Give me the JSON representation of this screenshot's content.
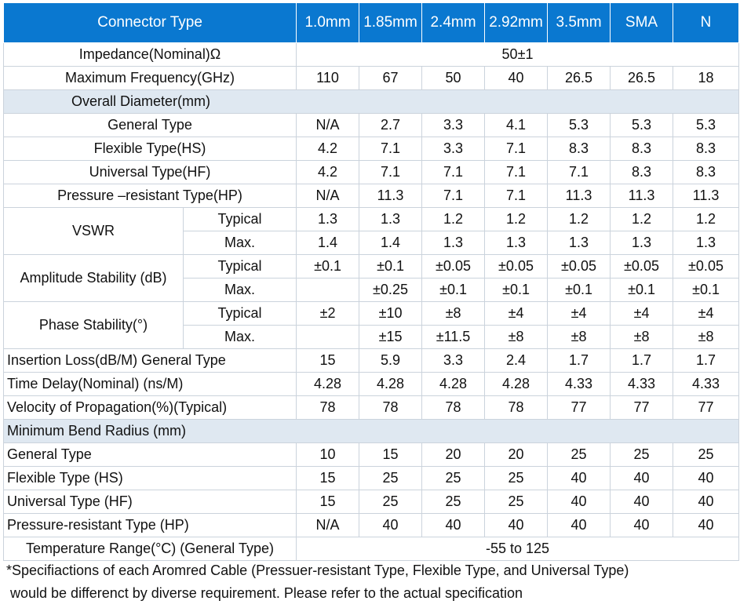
{
  "columns": [
    "1.0mm",
    "1.85mm",
    "2.4mm",
    "2.92mm",
    "3.5mm",
    "SMA",
    "N"
  ],
  "header": {
    "label": "Connector Type"
  },
  "impedance": {
    "label": "Impedance(Nominal)Ω",
    "value": "50±1"
  },
  "max_freq": {
    "label": "Maximum Frequency(GHz)",
    "values": [
      "110",
      "67",
      "50",
      "40",
      "26.5",
      "26.5",
      "18"
    ]
  },
  "overall_diameter": {
    "label": "Overall Diameter(mm)",
    "rows": [
      {
        "label": "General Type",
        "values": [
          "N/A",
          "2.7",
          "3.3",
          "4.1",
          "5.3",
          "5.3",
          "5.3"
        ]
      },
      {
        "label": "Flexible Type(HS)",
        "values": [
          "4.2",
          "7.1",
          "3.3",
          "7.1",
          "8.3",
          "8.3",
          "8.3"
        ]
      },
      {
        "label": "Universal Type(HF)",
        "values": [
          "4.2",
          "7.1",
          "7.1",
          "7.1",
          "7.1",
          "8.3",
          "8.3"
        ]
      },
      {
        "label": "Pressure –resistant Type(HP)",
        "values": [
          "N/A",
          "11.3",
          "7.1",
          "7.1",
          "11.3",
          "11.3",
          "11.3"
        ]
      }
    ]
  },
  "vswr": {
    "label": "VSWR",
    "typical": {
      "label": "Typical",
      "values": [
        "1.3",
        "1.3",
        "1.2",
        "1.2",
        "1.2",
        "1.2",
        "1.2"
      ]
    },
    "max": {
      "label": "Max.",
      "values": [
        "1.4",
        "1.4",
        "1.3",
        "1.3",
        "1.3",
        "1.3",
        "1.3"
      ]
    }
  },
  "amplitude": {
    "label": "Amplitude Stability (dB)",
    "typical": {
      "label": "Typical",
      "values": [
        "±0.1",
        "±0.1",
        "±0.05",
        "±0.05",
        "±0.05",
        "±0.05",
        "±0.05"
      ]
    },
    "max": {
      "label": "Max.",
      "values": [
        "",
        "±0.25",
        "±0.1",
        "±0.1",
        "±0.1",
        "±0.1",
        "±0.1"
      ]
    }
  },
  "phase": {
    "label": "Phase Stability(°)",
    "typical": {
      "label": "Typical",
      "values": [
        "±2",
        "±10",
        "±8",
        "±4",
        "±4",
        "±4",
        "±4"
      ]
    },
    "max": {
      "label": "Max.",
      "values": [
        "",
        "±15",
        "±11.5",
        "±8",
        "±8",
        "±8",
        "±8"
      ]
    }
  },
  "insertion_loss": {
    "label": "Insertion Loss(dB/M) General Type",
    "values": [
      "15",
      "5.9",
      "3.3",
      "2.4",
      "1.7",
      "1.7",
      "1.7"
    ]
  },
  "time_delay": {
    "label": "Time Delay(Nominal) (ns/M)",
    "values": [
      "4.28",
      "4.28",
      "4.28",
      "4.28",
      "4.33",
      "4.33",
      "4.33"
    ]
  },
  "velocity": {
    "label": "Velocity of Propagation(%)(Typical)",
    "values": [
      "78",
      "78",
      "78",
      "78",
      "77",
      "77",
      "77"
    ]
  },
  "bend_radius": {
    "label": "Minimum Bend Radius (mm)",
    "rows": [
      {
        "label": "General Type",
        "values": [
          "10",
          "15",
          "20",
          "20",
          "25",
          "25",
          "25"
        ]
      },
      {
        "label": "Flexible Type (HS)",
        "values": [
          "15",
          "25",
          "25",
          "25",
          "40",
          "40",
          "40"
        ]
      },
      {
        "label": "Universal Type (HF)",
        "values": [
          "15",
          "25",
          "25",
          "25",
          "40",
          "40",
          "40"
        ]
      },
      {
        "label": "Pressure-resistant Type (HP)",
        "values": [
          "N/A",
          "40",
          "40",
          "40",
          "40",
          "40",
          "40"
        ]
      }
    ]
  },
  "temperature": {
    "label": "Temperature Range(°C) (General Type)",
    "value": "-55 to 125"
  },
  "footnote": {
    "line1": "*Specifiactions of each Aromred Cable (Pressuer-resistant Type, Flexible Type, and Universal Type)",
    "line2": " would be differenct by diverse requirement. Please refer to the actual specification"
  },
  "colors": {
    "header_bg": "#0a78d0",
    "section_bg": "#dfe8f1",
    "border": "#cbd3dc"
  }
}
